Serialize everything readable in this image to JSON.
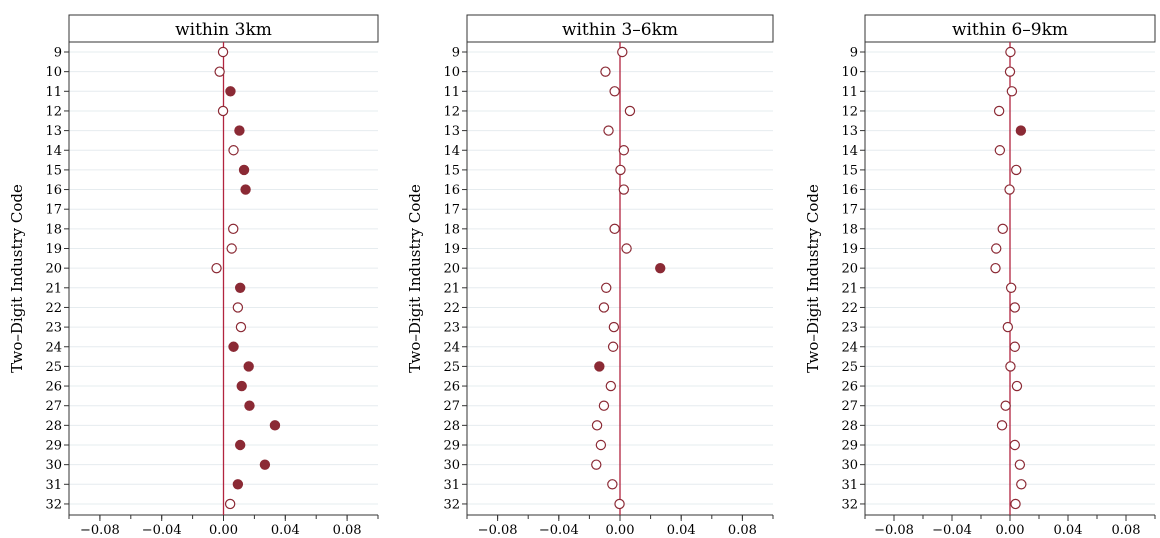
{
  "chart_data": [
    {
      "type": "scatter",
      "title": "within 3km",
      "ylabel": "Two–Digit Industry Code",
      "categories": [
        "9",
        "10",
        "11",
        "12",
        "13",
        "14",
        "15",
        "16",
        "17",
        "18",
        "19",
        "20",
        "21",
        "22",
        "23",
        "24",
        "25",
        "26",
        "27",
        "28",
        "29",
        "30",
        "31",
        "32"
      ],
      "values": [
        -0.0003,
        -0.0025,
        0.0045,
        -0.0003,
        0.0103,
        0.0065,
        0.0133,
        0.0143,
        null,
        0.0063,
        0.0053,
        -0.0045,
        0.0108,
        0.0093,
        0.0113,
        0.0065,
        0.0163,
        0.0118,
        0.0168,
        0.0333,
        0.0108,
        0.0268,
        0.0093,
        0.0043
      ],
      "significant": [
        false,
        false,
        true,
        false,
        true,
        false,
        true,
        true,
        null,
        false,
        false,
        false,
        true,
        false,
        false,
        true,
        true,
        true,
        true,
        true,
        true,
        true,
        true,
        false
      ],
      "xlim": [
        -0.1,
        0.1
      ],
      "xticks": [
        "−0.08",
        "−0.04",
        "0.00",
        "0.04",
        "0.08"
      ],
      "xtick_values": [
        -0.08,
        -0.04,
        0.0,
        0.04,
        0.08
      ],
      "reference_line": 0,
      "grid": true
    },
    {
      "type": "scatter",
      "title": "within 3–6km",
      "ylabel": "Two–Digit Industry Code",
      "categories": [
        "9",
        "10",
        "11",
        "12",
        "13",
        "14",
        "15",
        "16",
        "17",
        "18",
        "19",
        "20",
        "21",
        "22",
        "23",
        "24",
        "25",
        "26",
        "27",
        "28",
        "29",
        "30",
        "31",
        "32"
      ],
      "values": [
        0.0015,
        -0.0095,
        -0.0035,
        0.0065,
        -0.0075,
        0.0025,
        0.0003,
        0.0025,
        null,
        -0.0035,
        0.0043,
        0.0263,
        -0.009,
        -0.0105,
        -0.004,
        -0.0045,
        -0.0135,
        -0.006,
        -0.0105,
        -0.015,
        -0.0125,
        -0.0155,
        -0.005,
        -0.0003
      ],
      "significant": [
        false,
        false,
        false,
        false,
        false,
        false,
        false,
        false,
        null,
        false,
        false,
        true,
        false,
        false,
        false,
        false,
        true,
        false,
        false,
        false,
        false,
        false,
        false,
        false
      ],
      "xlim": [
        -0.1,
        0.1
      ],
      "xticks": [
        "−0.08",
        "−0.04",
        "0.00",
        "0.04",
        "0.08"
      ],
      "xtick_values": [
        -0.08,
        -0.04,
        0.0,
        0.04,
        0.08
      ],
      "reference_line": 0,
      "grid": true
    },
    {
      "type": "scatter",
      "title": "within 6–9km",
      "ylabel": "Two–Digit Industry Code",
      "categories": [
        "9",
        "10",
        "11",
        "12",
        "13",
        "14",
        "15",
        "16",
        "17",
        "18",
        "19",
        "20",
        "21",
        "22",
        "23",
        "24",
        "25",
        "26",
        "27",
        "28",
        "29",
        "30",
        "31",
        "32"
      ],
      "values": [
        0.0003,
        0.0,
        0.0013,
        -0.0075,
        0.0075,
        -0.007,
        0.0043,
        -0.0003,
        null,
        -0.005,
        -0.0095,
        -0.01,
        0.0008,
        0.0033,
        -0.0015,
        0.0033,
        0.0003,
        0.0048,
        -0.003,
        -0.0055,
        0.0033,
        0.0068,
        0.0078,
        0.0038
      ],
      "significant": [
        false,
        false,
        false,
        false,
        true,
        false,
        false,
        false,
        null,
        false,
        false,
        false,
        false,
        false,
        false,
        false,
        false,
        false,
        false,
        false,
        false,
        false,
        false,
        false
      ],
      "xlim": [
        -0.1,
        0.1
      ],
      "xticks": [
        "−0.08",
        "−0.04",
        "0.00",
        "0.04",
        "0.08"
      ],
      "xtick_values": [
        -0.08,
        -0.04,
        0.0,
        0.04,
        0.08
      ],
      "reference_line": 0,
      "grid": true
    }
  ],
  "colors": {
    "marker": "#8b2a35",
    "zero_line": "#b2243f",
    "grid": "#e6ecef",
    "frame": "#333333"
  }
}
